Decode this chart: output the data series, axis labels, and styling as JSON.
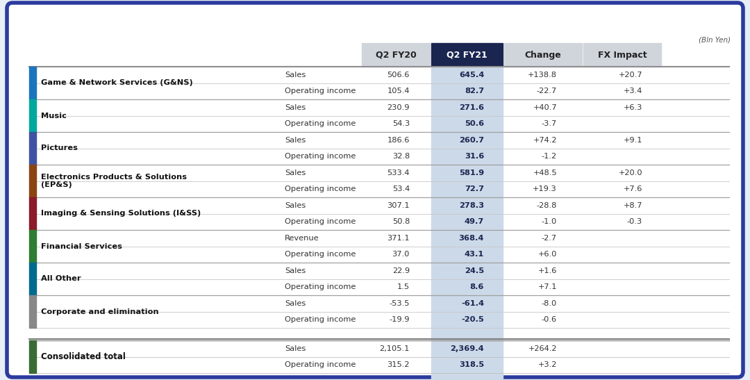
{
  "title_note": "(Bln Yen)",
  "segments": [
    {
      "name": "Game & Network Services (G&NS)",
      "color": "#1b75bc",
      "rows": [
        {
          "label": "Sales",
          "fy20": "506.6",
          "fy21": "645.4",
          "change": "+138.8",
          "fx": "+20.7"
        },
        {
          "label": "Operating income",
          "fy20": "105.4",
          "fy21": "82.7",
          "change": "-22.7",
          "fx": "+3.4"
        }
      ]
    },
    {
      "name": "Music",
      "color": "#00a99d",
      "rows": [
        {
          "label": "Sales",
          "fy20": "230.9",
          "fy21": "271.6",
          "change": "+40.7",
          "fx": "+6.3"
        },
        {
          "label": "Operating income",
          "fy20": "54.3",
          "fy21": "50.6",
          "change": "-3.7",
          "fx": ""
        }
      ]
    },
    {
      "name": "Pictures",
      "color": "#4052a2",
      "rows": [
        {
          "label": "Sales",
          "fy20": "186.6",
          "fy21": "260.7",
          "change": "+74.2",
          "fx": "+9.1"
        },
        {
          "label": "Operating income",
          "fy20": "32.8",
          "fy21": "31.6",
          "change": "-1.2",
          "fx": ""
        }
      ]
    },
    {
      "name": "Electronics Products & Solutions\n(EP&S)",
      "color": "#8b4513",
      "rows": [
        {
          "label": "Sales",
          "fy20": "533.4",
          "fy21": "581.9",
          "change": "+48.5",
          "fx": "+20.0"
        },
        {
          "label": "Operating income",
          "fy20": "53.4",
          "fy21": "72.7",
          "change": "+19.3",
          "fx": "+7.6"
        }
      ]
    },
    {
      "name": "Imaging & Sensing Solutions (I&SS)",
      "color": "#8b1a2a",
      "rows": [
        {
          "label": "Sales",
          "fy20": "307.1",
          "fy21": "278.3",
          "change": "-28.8",
          "fx": "+8.7"
        },
        {
          "label": "Operating income",
          "fy20": "50.8",
          "fy21": "49.7",
          "change": "-1.0",
          "fx": "-0.3"
        }
      ]
    },
    {
      "name": "Financial Services",
      "color": "#2e7d32",
      "rows": [
        {
          "label": "Revenue",
          "fy20": "371.1",
          "fy21": "368.4",
          "change": "-2.7",
          "fx": ""
        },
        {
          "label": "Operating income",
          "fy20": "37.0",
          "fy21": "43.1",
          "change": "+6.0",
          "fx": ""
        }
      ]
    },
    {
      "name": "All Other",
      "color": "#006b8f",
      "rows": [
        {
          "label": "Sales",
          "fy20": "22.9",
          "fy21": "24.5",
          "change": "+1.6",
          "fx": ""
        },
        {
          "label": "Operating income",
          "fy20": "1.5",
          "fy21": "8.6",
          "change": "+7.1",
          "fx": ""
        }
      ]
    },
    {
      "name": "Corporate and elimination",
      "color": "#888888",
      "rows": [
        {
          "label": "Sales",
          "fy20": "-53.5",
          "fy21": "-61.4",
          "change": "-8.0",
          "fx": ""
        },
        {
          "label": "Operating income",
          "fy20": "-19.9",
          "fy21": "-20.5",
          "change": "-0.6",
          "fx": ""
        }
      ]
    }
  ],
  "total": {
    "name": "Consolidated total",
    "color": "#3a6b35",
    "rows": [
      {
        "label": "Sales",
        "fy20": "2,105.1",
        "fy21": "2,369.4",
        "change": "+264.2",
        "fx": ""
      },
      {
        "label": "Operating income",
        "fy20": "315.2",
        "fy21": "318.5",
        "change": "+3.2",
        "fx": ""
      }
    ]
  },
  "outer_bg": "#e8eef5",
  "inner_bg": "#ffffff",
  "header_dark_bg": "#1a2550",
  "header_light_bg": "#d0d5dc",
  "fy21_col_bg": "#ccd9e8",
  "border_color": "#2b3b9e",
  "separator_color": "#b0b8c0",
  "thick_line_color": "#808080"
}
